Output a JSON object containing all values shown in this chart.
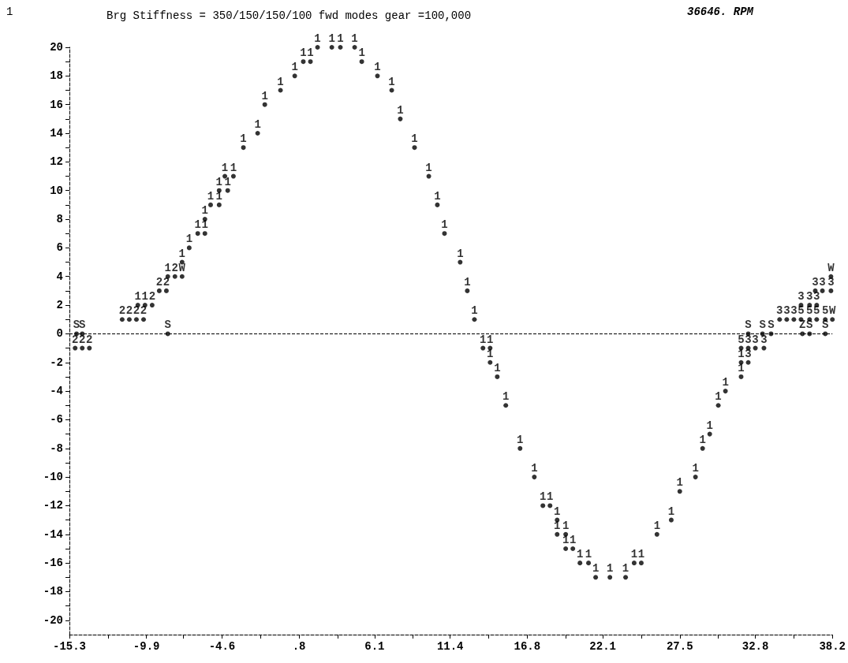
{
  "chart_data": {
    "type": "scatter",
    "title": "Brg Stiffness = 350/150/150/100 fwd modes gear =100,000",
    "annotations": [
      "1",
      "36646. RPM"
    ],
    "grid": false,
    "legend": false,
    "xlim": [
      -15.3,
      38.2
    ],
    "xticks": [
      -15.3,
      {
        "value": -12.6,
        "label": null
      },
      -9.9,
      {
        "value": -7.3,
        "label": null
      },
      -4.6,
      {
        "value": -1.9,
        "label": null
      },
      {
        "value": 0.8,
        "label": ".8"
      },
      {
        "value": 3.5,
        "label": null
      },
      6.1,
      {
        "value": 8.8,
        "label": null
      },
      11.4,
      {
        "value": 14.1,
        "label": null
      },
      16.8,
      {
        "value": 19.5,
        "label": null
      },
      22.1,
      {
        "value": 24.8,
        "label": null
      },
      27.5,
      {
        "value": 30.2,
        "label": null
      },
      32.8,
      {
        "value": 35.5,
        "label": null
      },
      38.2
    ],
    "ylim": [
      -21,
      20
    ],
    "yticks": [
      -20,
      {
        "value": -19,
        "label": null
      },
      -18,
      {
        "value": -17,
        "label": null
      },
      -16,
      {
        "value": -15,
        "label": null
      },
      -14,
      {
        "value": -13,
        "label": null
      },
      -12,
      {
        "value": -11,
        "label": null
      },
      -10,
      {
        "value": -9,
        "label": null
      },
      -8,
      {
        "value": -7,
        "label": null
      },
      -6,
      {
        "value": -5,
        "label": null
      },
      -4,
      {
        "value": -3,
        "label": null
      },
      -2,
      {
        "value": -1,
        "label": null
      },
      0,
      {
        "value": 1,
        "label": null
      },
      2,
      {
        "value": 3,
        "label": null
      },
      4,
      {
        "value": 5,
        "label": null
      },
      6,
      {
        "value": 7,
        "label": null
      },
      8,
      {
        "value": 9,
        "label": null
      },
      10,
      {
        "value": 11,
        "label": null
      },
      12,
      {
        "value": 13,
        "label": null
      },
      14,
      {
        "value": 15,
        "label": null
      },
      16,
      {
        "value": 17,
        "label": null
      },
      18,
      {
        "value": 19,
        "label": null
      },
      20
    ],
    "ref_lines": [
      {
        "axis": "y",
        "value": 0,
        "color": "#000000",
        "line_style": "dashed"
      }
    ],
    "series": [
      {
        "name": "1",
        "color": "#000000",
        "x": [
          -10.5,
          -10.0,
          -8.4,
          -7.4,
          -6.9,
          -6.3,
          -5.8,
          -5.8,
          -5.4,
          -4.8,
          -4.8,
          -4.2,
          -4.4,
          -3.8,
          -3.1,
          -2.1,
          -1.6,
          -0.5,
          0.5,
          1.1,
          1.6,
          2.1,
          3.1,
          3.7,
          4.7,
          5.2,
          6.3,
          7.3,
          7.9,
          8.9,
          9.9,
          10.5,
          11.0,
          12.1,
          12.6,
          13.1,
          13.7,
          14.2,
          14.2,
          14.7,
          15.3,
          16.3,
          17.3,
          17.9,
          18.4,
          18.9,
          18.9,
          19.5,
          19.5,
          20.0,
          20.5,
          21.1,
          21.6,
          22.6,
          23.7,
          24.3,
          24.8,
          25.9,
          26.9,
          27.5,
          28.6,
          29.1,
          29.6,
          30.2,
          30.7,
          31.8,
          31.8
        ],
        "values": [
          2,
          2,
          4,
          5,
          6,
          7,
          7,
          8,
          9,
          9,
          10,
          10,
          11,
          11,
          13,
          14,
          16,
          17,
          18,
          19,
          19,
          20,
          20,
          20,
          20,
          19,
          18,
          17,
          15,
          13,
          11,
          9,
          7,
          5,
          3,
          1,
          -1,
          -1,
          -2,
          -3,
          -5,
          -8,
          -10,
          -12,
          -12,
          -13,
          -14,
          -14,
          -15,
          -15,
          -16,
          -16,
          -17,
          -17,
          -17,
          -16,
          -16,
          -14,
          -13,
          -11,
          -10,
          -8,
          -7,
          -5,
          -4,
          -3,
          -2
        ]
      },
      {
        "name": "2",
        "color": "#000000",
        "x": [
          -7.9,
          -9.0,
          -8.5,
          -9.5,
          -11.6,
          -11.1,
          -10.6,
          -10.1,
          -14.9,
          -14.4,
          -13.9
        ],
        "values": [
          4,
          3,
          3,
          2,
          1,
          1,
          1,
          1,
          -1,
          -1,
          -1
        ]
      },
      {
        "name": "3",
        "color": "#000000",
        "x": [
          37.0,
          37.5,
          38.1,
          36.0,
          36.6,
          37.1,
          34.5,
          35.0,
          35.5,
          32.3,
          32.8,
          33.4,
          32.3
        ],
        "values": [
          3,
          3,
          3,
          2,
          2,
          2,
          1,
          1,
          1,
          -1,
          -1,
          -1,
          -2
        ]
      },
      {
        "name": "5",
        "color": "#000000",
        "x": [
          36.0,
          36.6,
          37.1,
          37.7,
          31.8
        ],
        "values": [
          1,
          1,
          1,
          1,
          -1
        ]
      },
      {
        "name": "W",
        "color": "#000000",
        "x": [
          -7.4,
          38.1,
          38.2
        ],
        "values": [
          4,
          4,
          1
        ]
      },
      {
        "name": "S",
        "color": "#000000",
        "x": [
          -14.8,
          -14.4,
          -8.4,
          32.3,
          33.3,
          33.9,
          36.6,
          37.7
        ],
        "values": [
          0,
          0,
          0,
          0,
          0,
          0,
          0,
          0
        ]
      },
      {
        "name": "Z",
        "color": "#000000",
        "x": [
          36.1
        ],
        "values": [
          0
        ]
      }
    ]
  }
}
